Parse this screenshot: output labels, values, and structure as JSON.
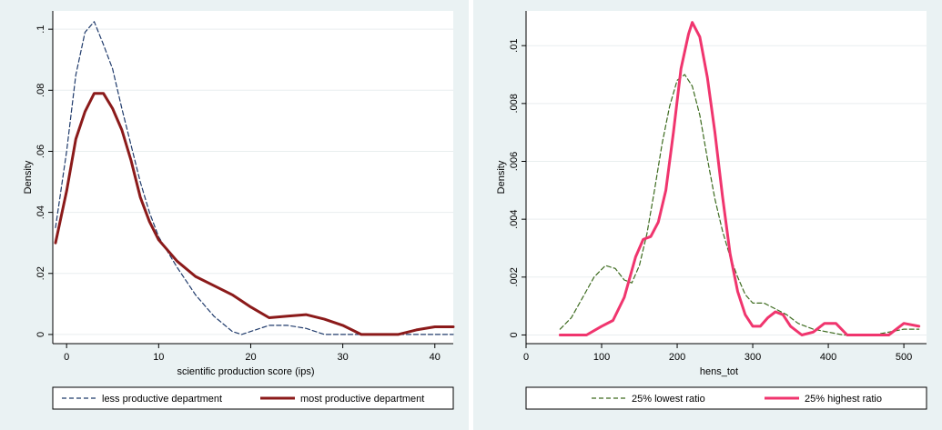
{
  "chart_data": [
    {
      "type": "line",
      "title": "",
      "xlabel": "scientific production score (ips)",
      "ylabel": "Density",
      "xlim": [
        -1.5,
        42
      ],
      "ylim": [
        -0.003,
        0.106
      ],
      "x_ticks": [
        0,
        10,
        20,
        30,
        40
      ],
      "x_tick_labels": [
        "0",
        "10",
        "20",
        "30",
        "40"
      ],
      "y_ticks": [
        0,
        0.02,
        0.04,
        0.06,
        0.08,
        0.1
      ],
      "y_tick_labels": [
        "0",
        ".02",
        ".04",
        ".06",
        ".08",
        ".1"
      ],
      "grid": "horizontal",
      "legend_position": "bottom",
      "series": [
        {
          "name": "less productive department",
          "color": "#1f3a6b",
          "style": "dashed",
          "x": [
            -1.2,
            0,
            1,
            2,
            3,
            4,
            5,
            6,
            7,
            8,
            9,
            10,
            12,
            14,
            16,
            18,
            19,
            20,
            22,
            24,
            26,
            28,
            30,
            32,
            35,
            38,
            40,
            42
          ],
          "y": [
            0.035,
            0.06,
            0.085,
            0.099,
            0.1025,
            0.095,
            0.087,
            0.074,
            0.062,
            0.05,
            0.04,
            0.032,
            0.022,
            0.013,
            0.006,
            0.001,
            0.0,
            0.001,
            0.003,
            0.003,
            0.002,
            0.0,
            0.0,
            0.0,
            0.0,
            0.0,
            0.0,
            0.0
          ]
        },
        {
          "name": "most productive department",
          "color": "#8b1a1a",
          "style": "solid",
          "x": [
            -1.2,
            0,
            1,
            2,
            3,
            4,
            5,
            6,
            7,
            8,
            9,
            10,
            12,
            14,
            16,
            18,
            19,
            20,
            22,
            24,
            26,
            28,
            30,
            32,
            34,
            36,
            38,
            40,
            42
          ],
          "y": [
            0.03,
            0.047,
            0.064,
            0.073,
            0.079,
            0.079,
            0.074,
            0.067,
            0.057,
            0.045,
            0.037,
            0.031,
            0.024,
            0.019,
            0.016,
            0.013,
            0.011,
            0.009,
            0.0055,
            0.006,
            0.0065,
            0.005,
            0.003,
            0.0,
            0.0,
            0.0,
            0.0015,
            0.0025,
            0.0025
          ]
        }
      ]
    },
    {
      "type": "line",
      "title": "",
      "xlabel": "hens_tot",
      "ylabel": "Density",
      "xlim": [
        0,
        530
      ],
      "ylim": [
        -0.0003,
        0.0112
      ],
      "x_ticks": [
        0,
        100,
        200,
        300,
        400,
        500
      ],
      "x_tick_labels": [
        "0",
        "100",
        "200",
        "300",
        "400",
        "500"
      ],
      "y_ticks": [
        0,
        0.002,
        0.004,
        0.006,
        0.008,
        0.01
      ],
      "y_tick_labels": [
        "0",
        ".002",
        ".004",
        ".006",
        ".008",
        ".01"
      ],
      "grid": "horizontal",
      "legend_position": "bottom",
      "series": [
        {
          "name": "25% lowest ratio",
          "color": "#3d6b1f",
          "style": "dashed",
          "x": [
            45,
            60,
            75,
            90,
            105,
            118,
            130,
            140,
            150,
            160,
            170,
            180,
            190,
            200,
            210,
            220,
            230,
            240,
            250,
            260,
            270,
            280,
            290,
            300,
            315,
            330,
            345,
            360,
            380,
            400,
            420,
            440,
            460,
            480,
            500,
            520
          ],
          "y": [
            0.0002,
            0.0006,
            0.0013,
            0.002,
            0.0024,
            0.0023,
            0.0019,
            0.0018,
            0.0024,
            0.0035,
            0.005,
            0.0066,
            0.0079,
            0.0088,
            0.009,
            0.0086,
            0.0076,
            0.0061,
            0.0047,
            0.0036,
            0.0027,
            0.002,
            0.0014,
            0.0011,
            0.0011,
            0.0009,
            0.0007,
            0.0004,
            0.0002,
            0.0001,
            0.0,
            0.0,
            0.0,
            0.0001,
            0.0002,
            0.0002
          ]
        },
        {
          "name": "25% highest ratio",
          "color": "#f0356e",
          "style": "solid",
          "x": [
            45,
            60,
            80,
            100,
            115,
            130,
            145,
            155,
            165,
            175,
            185,
            195,
            205,
            215,
            220,
            230,
            240,
            250,
            260,
            270,
            280,
            290,
            300,
            310,
            320,
            330,
            340,
            350,
            365,
            380,
            395,
            410,
            425,
            440,
            460,
            480,
            500,
            520
          ],
          "y": [
            0.0,
            0.0,
            0.0,
            0.0003,
            0.0005,
            0.0013,
            0.0027,
            0.0033,
            0.0034,
            0.0039,
            0.005,
            0.007,
            0.0092,
            0.0104,
            0.0108,
            0.0103,
            0.0089,
            0.007,
            0.0048,
            0.0028,
            0.0015,
            0.0007,
            0.0003,
            0.0003,
            0.0006,
            0.0008,
            0.0007,
            0.0003,
            0.0,
            0.0001,
            0.0004,
            0.0004,
            0.0,
            0.0,
            0.0,
            0.0,
            0.0004,
            0.0003
          ]
        }
      ]
    }
  ]
}
